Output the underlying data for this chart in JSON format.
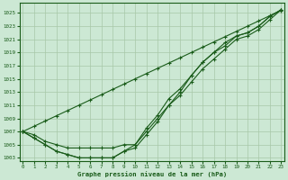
{
  "xlabel": "Graphe pression niveau de la mer (hPa)",
  "background_color": "#cce8d4",
  "grid_color": "#a8c8a8",
  "line_color": "#1a5c1a",
  "ylim": [
    1002.5,
    1026.5
  ],
  "xlim": [
    -0.3,
    23.3
  ],
  "yticks": [
    1003,
    1005,
    1007,
    1009,
    1011,
    1013,
    1015,
    1017,
    1019,
    1021,
    1023,
    1025
  ],
  "xticks": [
    0,
    1,
    2,
    3,
    4,
    5,
    6,
    7,
    8,
    9,
    10,
    11,
    12,
    13,
    14,
    15,
    16,
    17,
    18,
    19,
    20,
    21,
    22,
    23
  ],
  "line1": [
    1007,
    1006.5,
    1005.5,
    1005,
    1004.5,
    1004.5,
    1004.5,
    1004.5,
    1004.5,
    1005,
    1005,
    1007,
    1009,
    1011,
    1012.5,
    1014.5,
    1016.5,
    1018,
    1019.5,
    1021,
    1021.5,
    1022.5,
    1024,
    1025.5
  ],
  "line2": [
    1007,
    1006,
    1005,
    1004,
    1003.5,
    1003,
    1003,
    1003,
    1003,
    1004,
    1004.5,
    1006.5,
    1008.5,
    1011,
    1013,
    1015.5,
    1017.5,
    1019,
    1020,
    1021.5,
    1022,
    1023,
    1024.5,
    1025.5
  ],
  "line3": [
    1007,
    1006,
    1005,
    1004,
    1003.5,
    1003,
    1003,
    1003,
    1003,
    1004,
    1005,
    1007.5,
    1009.5,
    1012,
    1013.5,
    1015.5,
    1017.5,
    1019,
    1020.5,
    1021.5,
    1022,
    1023,
    1024.5,
    1025.5
  ],
  "line_straight": [
    1007,
    1007.8,
    1008.6,
    1009.4,
    1010.2,
    1011,
    1011.8,
    1012.6,
    1013.4,
    1014.2,
    1015,
    1015.8,
    1016.6,
    1017.4,
    1018.2,
    1019,
    1019.8,
    1020.6,
    1021.4,
    1022.2,
    1023,
    1023.8,
    1024.6,
    1025.4
  ]
}
